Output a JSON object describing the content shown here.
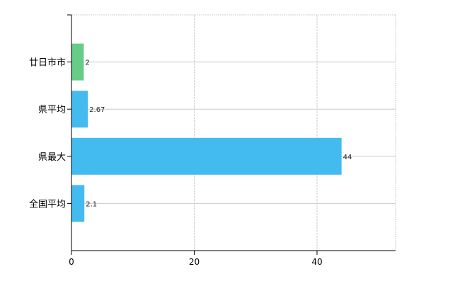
{
  "chart_data": {
    "type": "bar",
    "orientation": "horizontal",
    "categories": [
      "廿日市市",
      "県平均",
      "県最大",
      "全国平均"
    ],
    "values": [
      2,
      2.67,
      44,
      2.1
    ],
    "data_labels": [
      "2",
      "2.67",
      "44",
      "2.1"
    ],
    "bar_colors": [
      "#66cc88",
      "#44bbee",
      "#44bbee",
      "#44bbee"
    ],
    "xlim": [
      0,
      52.8
    ],
    "xticks": [
      0,
      20,
      40
    ],
    "xtick_labels": [
      "0",
      "20",
      "40"
    ],
    "grid": true,
    "title": "",
    "xlabel": "",
    "ylabel": ""
  }
}
